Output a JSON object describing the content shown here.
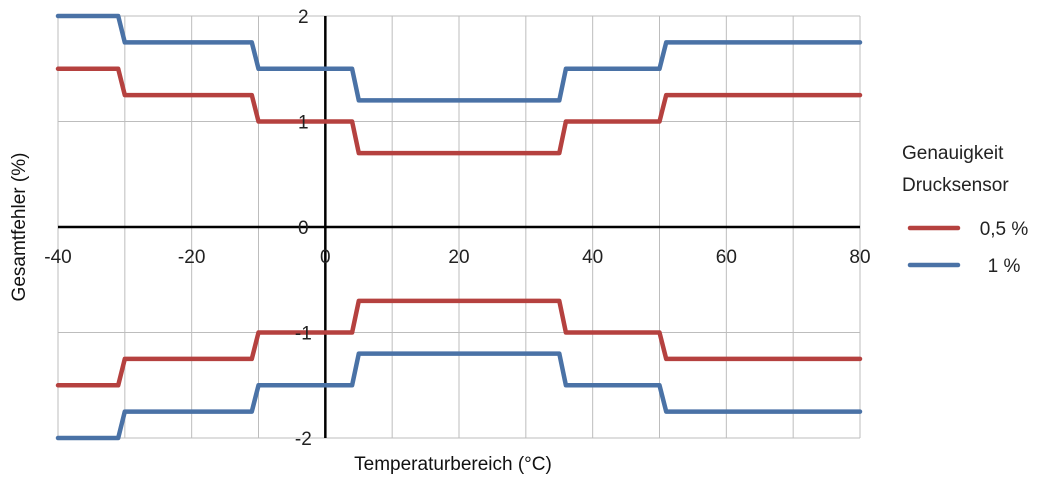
{
  "chart_data": {
    "type": "line",
    "xlabel": "Temperaturbereich (°C)",
    "ylabel": "Gesamtfehler (%)",
    "xlim": [
      -40,
      80
    ],
    "ylim": [
      -2,
      2
    ],
    "x_ticks": [
      -40,
      -20,
      0,
      20,
      40,
      60,
      80
    ],
    "y_ticks": [
      2,
      1,
      0,
      -1,
      -2
    ],
    "x_tick_labels": [
      "-40",
      "-20",
      "0",
      "20",
      "40",
      "60",
      "80"
    ],
    "y_tick_labels": [
      "2",
      "1",
      "0",
      "-1",
      "-2"
    ],
    "grid": true,
    "legend_title_line1": "Genauigkeit",
    "legend_title_line2": "Drucksensor",
    "legend_position": "right",
    "series": [
      {
        "name": "0,5 %",
        "color": "#b5413f",
        "upper": {
          "x": [
            -40,
            -31,
            -30,
            -11,
            -10,
            4,
            5,
            35,
            36,
            50,
            51,
            80
          ],
          "y": [
            1.5,
            1.5,
            1.25,
            1.25,
            1.0,
            1.0,
            0.7,
            0.7,
            1.0,
            1.0,
            1.25,
            1.25
          ]
        },
        "lower": {
          "x": [
            -40,
            -31,
            -30,
            -11,
            -10,
            4,
            5,
            35,
            36,
            50,
            51,
            80
          ],
          "y": [
            -1.5,
            -1.5,
            -1.25,
            -1.25,
            -1.0,
            -1.0,
            -0.7,
            -0.7,
            -1.0,
            -1.0,
            -1.25,
            -1.25
          ]
        }
      },
      {
        "name": "1 %",
        "color": "#4a72a6",
        "upper": {
          "x": [
            -40,
            -31,
            -30,
            -11,
            -10,
            4,
            5,
            35,
            36,
            50,
            51,
            80
          ],
          "y": [
            2.0,
            2.0,
            1.75,
            1.75,
            1.5,
            1.5,
            1.2,
            1.2,
            1.5,
            1.5,
            1.75,
            1.75
          ]
        },
        "lower": {
          "x": [
            -40,
            -31,
            -30,
            -11,
            -10,
            4,
            5,
            35,
            36,
            50,
            51,
            80
          ],
          "y": [
            -2.0,
            -2.0,
            -1.75,
            -1.75,
            -1.5,
            -1.5,
            -1.2,
            -1.2,
            -1.5,
            -1.5,
            -1.75,
            -1.75
          ]
        }
      }
    ]
  }
}
